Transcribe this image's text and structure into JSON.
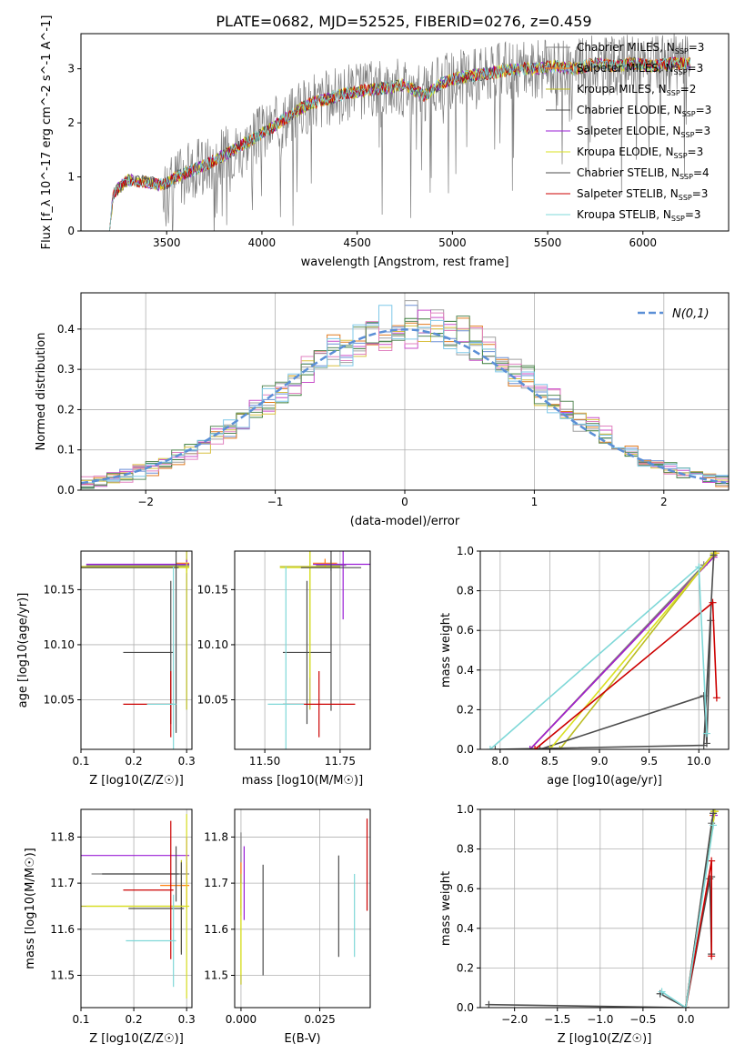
{
  "figure_title": "PLATE=0682, MJD=52525, FIBERID=0276, z=0.459",
  "series_colors": {
    "chabrier_miles": "#7f7f7f",
    "salpeter_miles": "#ff7f0e",
    "kroupa_miles": "#bcbd22",
    "chabrier_elodie": "#4d4d4d",
    "salpeter_elodie": "#9a1ed6",
    "kroupa_elodie": "#d9e021",
    "chabrier_stelib": "#4d4d4d",
    "salpeter_stelib": "#cc0000",
    "kroupa_stelib": "#7fd8d8"
  },
  "chart_data": [
    {
      "type": "line",
      "title": "PLATE=0682, MJD=52525, FIBERID=0276, z=0.459",
      "xlabel": "wavelength [Angstrom, rest frame]",
      "ylabel": "Flux [f_λ 10^-17 erg cm^-2 s^-1 A^-1]",
      "xlim": [
        3050,
        6450
      ],
      "ylim": [
        0,
        3.65
      ],
      "xticks": [
        "3500",
        "4000",
        "4500",
        "5000",
        "5500",
        "6000"
      ],
      "yticks": [
        "0",
        "1",
        "2",
        "3"
      ],
      "legend_position": "top-right",
      "legend": [
        {
          "label": "Chabrier MILES, N",
          "sub": "SSP",
          "tail": "=3"
        },
        {
          "label": "Salpeter MILES, N",
          "sub": "SSP",
          "tail": "=3"
        },
        {
          "label": "Kroupa MILES, N",
          "sub": "SSP",
          "tail": "=2"
        },
        {
          "label": "Chabrier ELODIE, N",
          "sub": "SSP",
          "tail": "=3"
        },
        {
          "label": "Salpeter ELODIE, N",
          "sub": "SSP",
          "tail": "=3"
        },
        {
          "label": "Kroupa ELODIE, N",
          "sub": "SSP",
          "tail": "=3"
        },
        {
          "label": "Chabrier STELIB, N",
          "sub": "SSP",
          "tail": "=4"
        },
        {
          "label": "Salpeter STELIB, N",
          "sub": "SSP",
          "tail": "=3"
        },
        {
          "label": "Kroupa STELIB, N",
          "sub": "SSP",
          "tail": "=3"
        }
      ],
      "spectrum_profile": {
        "x": [
          3200,
          3220,
          3300,
          3400,
          3480,
          3550,
          3650,
          3750,
          3850,
          3950,
          4050,
          4150,
          4250,
          4350,
          4450,
          4550,
          4650,
          4750,
          4850,
          4950,
          5050,
          5150,
          5250,
          5350,
          5450,
          5550,
          5650,
          5750,
          5850,
          5950,
          6050,
          6150,
          6250
        ],
        "y": [
          0.0,
          0.7,
          0.95,
          0.9,
          0.85,
          1.0,
          1.15,
          1.3,
          1.5,
          1.7,
          1.9,
          2.15,
          2.35,
          2.45,
          2.55,
          2.6,
          2.65,
          2.7,
          2.5,
          2.75,
          2.85,
          2.9,
          2.95,
          3.0,
          3.0,
          3.05,
          3.0,
          3.1,
          3.05,
          3.1,
          3.05,
          3.1,
          3.1
        ]
      }
    },
    {
      "type": "histogram",
      "xlabel": "(data-model)/error",
      "ylabel": "Normed distribution",
      "xlim": [
        -2.5,
        2.5
      ],
      "ylim": [
        0,
        0.49
      ],
      "xticks": [
        "−2",
        "−1",
        "0",
        "1",
        "2"
      ],
      "yticks": [
        "0.0",
        "0.1",
        "0.2",
        "0.3",
        "0.4"
      ],
      "legend_position": "top-right",
      "reference_curve": {
        "name": "N(0,1)",
        "mean": 0,
        "sigma": 1
      },
      "bin_width": 0.1
    },
    {
      "type": "scatter",
      "xlabel": "Z [log10(Z/Z☉)]",
      "ylabel": "age  [log10(age/yr)]",
      "xlim": [
        0.1,
        0.31
      ],
      "ylim": [
        10.005,
        10.185
      ],
      "xticks": [
        "0.1",
        "0.2",
        "0.3"
      ],
      "yticks": [
        "10.05",
        "10.10",
        "10.15"
      ],
      "points": [
        {
          "series": "chabrier_miles",
          "x": 0.3,
          "y": 10.172,
          "xerr": 0.19,
          "yerr": 0.005
        },
        {
          "series": "salpeter_miles",
          "x": 0.3,
          "y": 10.174,
          "xerr": 0.02,
          "yerr": 0.004
        },
        {
          "series": "kroupa_miles",
          "x": 0.3,
          "y": 10.171,
          "xerr": 0.2,
          "yerr": 0.13
        },
        {
          "series": "chabrier_elodie",
          "x": 0.27,
          "y": 10.093,
          "xerr": 0.09,
          "yerr": 0.065
        },
        {
          "series": "salpeter_elodie",
          "x": 0.3,
          "y": 10.173,
          "xerr": 0.19,
          "yerr": 0.004
        },
        {
          "series": "kroupa_elodie",
          "x": 0.3,
          "y": 10.17,
          "xerr": 0.2,
          "yerr": 0.005
        },
        {
          "series": "chabrier_stelib",
          "x": 0.28,
          "y": 10.17,
          "xerr": 0.18,
          "yerr": 0.15
        },
        {
          "series": "salpeter_stelib",
          "x": 0.27,
          "y": 10.046,
          "xerr": 0.09,
          "yerr": 0.03
        },
        {
          "series": "kroupa_stelib",
          "x": 0.275,
          "y": 10.046,
          "xerr": 0.05,
          "yerr": 0.125
        }
      ]
    },
    {
      "type": "scatter",
      "xlabel": "mass [log10(M/M☉)]",
      "ylabel": "",
      "xlim": [
        11.4,
        11.85
      ],
      "ylim": [
        10.005,
        10.185
      ],
      "xticks": [
        "11.50",
        "11.75"
      ],
      "yticks": [
        "10.05",
        "10.10",
        "10.15"
      ],
      "points": [
        {
          "series": "chabrier_miles",
          "x": 11.72,
          "y": 10.172,
          "xerr": 0.05,
          "yerr": 0.005
        },
        {
          "series": "salpeter_miles",
          "x": 11.7,
          "y": 10.174,
          "xerr": 0.04,
          "yerr": 0.004
        },
        {
          "series": "kroupa_miles",
          "x": 11.65,
          "y": 10.171,
          "xerr": 0.1,
          "yerr": 0.13
        },
        {
          "series": "chabrier_elodie",
          "x": 11.64,
          "y": 10.093,
          "xerr": 0.08,
          "yerr": 0.065
        },
        {
          "series": "salpeter_elodie",
          "x": 11.76,
          "y": 10.173,
          "xerr": 0.1,
          "yerr": 0.05
        },
        {
          "series": "kroupa_elodie",
          "x": 11.65,
          "y": 10.17,
          "xerr": 0.1,
          "yerr": 0.1
        },
        {
          "series": "chabrier_stelib",
          "x": 11.72,
          "y": 10.17,
          "xerr": 0.1,
          "yerr": 0.13
        },
        {
          "series": "salpeter_stelib",
          "x": 11.68,
          "y": 10.046,
          "xerr": 0.12,
          "yerr": 0.03
        },
        {
          "series": "kroupa_stelib",
          "x": 11.57,
          "y": 10.046,
          "xerr": 0.06,
          "yerr": 0.125
        }
      ]
    },
    {
      "type": "line",
      "xlabel": "age  [log10(age/yr)]",
      "ylabel": "mass weight",
      "xlim": [
        7.8,
        10.3
      ],
      "ylim": [
        0,
        1
      ],
      "xticks": [
        "8.0",
        "8.5",
        "9.0",
        "9.5",
        "10.0"
      ],
      "yticks": [
        "0.0",
        "0.2",
        "0.4",
        "0.6",
        "0.8",
        "1.0"
      ],
      "series": [
        {
          "name": "chabrier_miles",
          "x": [
            8.3,
            10.05,
            10.15
          ],
          "y": [
            0.0,
            0.93,
            0.98
          ]
        },
        {
          "name": "salpeter_miles",
          "x": [
            8.3,
            10.15,
            10.17
          ],
          "y": [
            0.0,
            0.97,
            0.99
          ]
        },
        {
          "name": "kroupa_miles",
          "x": [
            8.6,
            10.15
          ],
          "y": [
            0.0,
            0.99
          ]
        },
        {
          "name": "chabrier_elodie",
          "x": [
            8.4,
            10.05,
            10.08,
            10.12
          ],
          "y": [
            0.0,
            0.27,
            0.03,
            0.65
          ]
        },
        {
          "name": "salpeter_elodie",
          "x": [
            8.3,
            10.15
          ],
          "y": [
            0.0,
            0.97
          ]
        },
        {
          "name": "kroupa_elodie",
          "x": [
            8.5,
            10.16
          ],
          "y": [
            0.0,
            0.99
          ]
        },
        {
          "name": "chabrier_stelib",
          "x": [
            7.95,
            10.05,
            10.15
          ],
          "y": [
            0.0,
            0.02,
            0.98
          ]
        },
        {
          "name": "salpeter_stelib",
          "x": [
            8.35,
            10.14,
            10.18
          ],
          "y": [
            0.0,
            0.74,
            0.26
          ]
        },
        {
          "name": "kroupa_stelib",
          "x": [
            7.9,
            10.0,
            10.08
          ],
          "y": [
            0.0,
            0.92,
            0.08
          ]
        }
      ]
    },
    {
      "type": "scatter",
      "xlabel": "Z [log10(Z/Z☉)]",
      "ylabel": "mass [log10(M/M☉)]",
      "xlim": [
        0.1,
        0.31
      ],
      "ylim": [
        11.43,
        11.86
      ],
      "xticks": [
        "0.1",
        "0.2",
        "0.3"
      ],
      "yticks": [
        "11.5",
        "11.6",
        "11.7",
        "11.8"
      ],
      "points": [
        {
          "series": "chabrier_miles",
          "x": 0.3,
          "y": 11.72,
          "xerr": 0.18,
          "yerr": 0.02
        },
        {
          "series": "salpeter_miles",
          "x": 0.3,
          "y": 11.695,
          "xerr": 0.05,
          "yerr": 0.05
        },
        {
          "series": "kroupa_miles",
          "x": 0.29,
          "y": 11.65,
          "xerr": 0.19,
          "yerr": 0.1
        },
        {
          "series": "chabrier_elodie",
          "x": 0.29,
          "y": 11.645,
          "xerr": 0.1,
          "yerr": 0.1
        },
        {
          "series": "salpeter_elodie",
          "x": 0.3,
          "y": 11.76,
          "xerr": 0.2,
          "yerr": 0.04
        },
        {
          "series": "kroupa_elodie",
          "x": 0.3,
          "y": 11.65,
          "xerr": 0.19,
          "yerr": 0.2
        },
        {
          "series": "chabrier_stelib",
          "x": 0.28,
          "y": 11.72,
          "xerr": 0.14,
          "yerr": 0.06
        },
        {
          "series": "salpeter_stelib",
          "x": 0.27,
          "y": 11.685,
          "xerr": 0.09,
          "yerr": 0.15
        },
        {
          "series": "kroupa_stelib",
          "x": 0.275,
          "y": 11.575,
          "xerr": 0.09,
          "yerr": 0.1
        }
      ]
    },
    {
      "type": "scatter",
      "xlabel": "E(B-V)",
      "ylabel": "",
      "xlim": [
        -0.002,
        0.041
      ],
      "ylim": [
        11.43,
        11.86
      ],
      "xticks": [
        "0.000",
        "0.025"
      ],
      "yticks": [
        "11.5",
        "11.6",
        "11.7",
        "11.8"
      ],
      "points": [
        {
          "series": "chabrier_miles",
          "x": 0.0,
          "y": 11.72,
          "yerr": 0.09
        },
        {
          "series": "salpeter_miles",
          "x": 0.0,
          "y": 11.695,
          "yerr": 0.05
        },
        {
          "series": "kroupa_miles",
          "x": 0.0,
          "y": 11.6,
          "yerr": 0.12
        },
        {
          "series": "chabrier_elodie",
          "x": 0.031,
          "y": 11.65,
          "yerr": 0.11
        },
        {
          "series": "salpeter_elodie",
          "x": 0.001,
          "y": 11.7,
          "yerr": 0.08
        },
        {
          "series": "kroupa_elodie",
          "x": 0.0,
          "y": 11.6,
          "yerr": 0.1
        },
        {
          "series": "chabrier_stelib",
          "x": 0.007,
          "y": 11.62,
          "yerr": 0.12
        },
        {
          "series": "salpeter_stelib",
          "x": 0.04,
          "y": 11.74,
          "yerr": 0.1
        },
        {
          "series": "kroupa_stelib",
          "x": 0.036,
          "y": 11.63,
          "yerr": 0.09
        }
      ]
    },
    {
      "type": "line",
      "xlabel": "Z [log10(Z/Z☉)]",
      "ylabel": "mass weight",
      "xlim": [
        -2.4,
        0.5
      ],
      "ylim": [
        0,
        1
      ],
      "xticks": [
        "−2.0",
        "−1.5",
        "−1.0",
        "−0.5",
        "0.0"
      ],
      "yticks": [
        "0.0",
        "0.2",
        "0.4",
        "0.6",
        "0.8",
        "1.0"
      ],
      "series": [
        {
          "name": "chabrier_miles",
          "x": [
            0.0,
            0.3,
            0.32
          ],
          "y": [
            0.0,
            0.93,
            0.98
          ]
        },
        {
          "name": "salpeter_miles",
          "x": [
            0.0,
            0.32,
            0.34
          ],
          "y": [
            0.0,
            0.97,
            0.99
          ]
        },
        {
          "name": "kroupa_miles",
          "x": [
            0.0,
            0.33
          ],
          "y": [
            0.0,
            0.99
          ]
        },
        {
          "name": "chabrier_elodie",
          "x": [
            -0.3,
            0.0,
            0.28,
            0.3,
            0.3
          ],
          "y": [
            0.07,
            0.0,
            0.65,
            0.27,
            0.66
          ]
        },
        {
          "name": "salpeter_elodie",
          "x": [
            0.0,
            0.33
          ],
          "y": [
            0.0,
            0.97
          ]
        },
        {
          "name": "kroupa_elodie",
          "x": [
            0.0,
            0.34
          ],
          "y": [
            0.0,
            0.99
          ]
        },
        {
          "name": "chabrier_stelib",
          "x": [
            -2.3,
            0.0,
            0.32
          ],
          "y": [
            0.015,
            0.0,
            0.98
          ]
        },
        {
          "name": "salpeter_stelib",
          "x": [
            0.0,
            0.3,
            0.3
          ],
          "y": [
            0.0,
            0.74,
            0.26
          ]
        },
        {
          "name": "kroupa_stelib",
          "x": [
            -0.28,
            0.0,
            0.32
          ],
          "y": [
            0.08,
            0.0,
            0.92
          ]
        }
      ]
    }
  ]
}
